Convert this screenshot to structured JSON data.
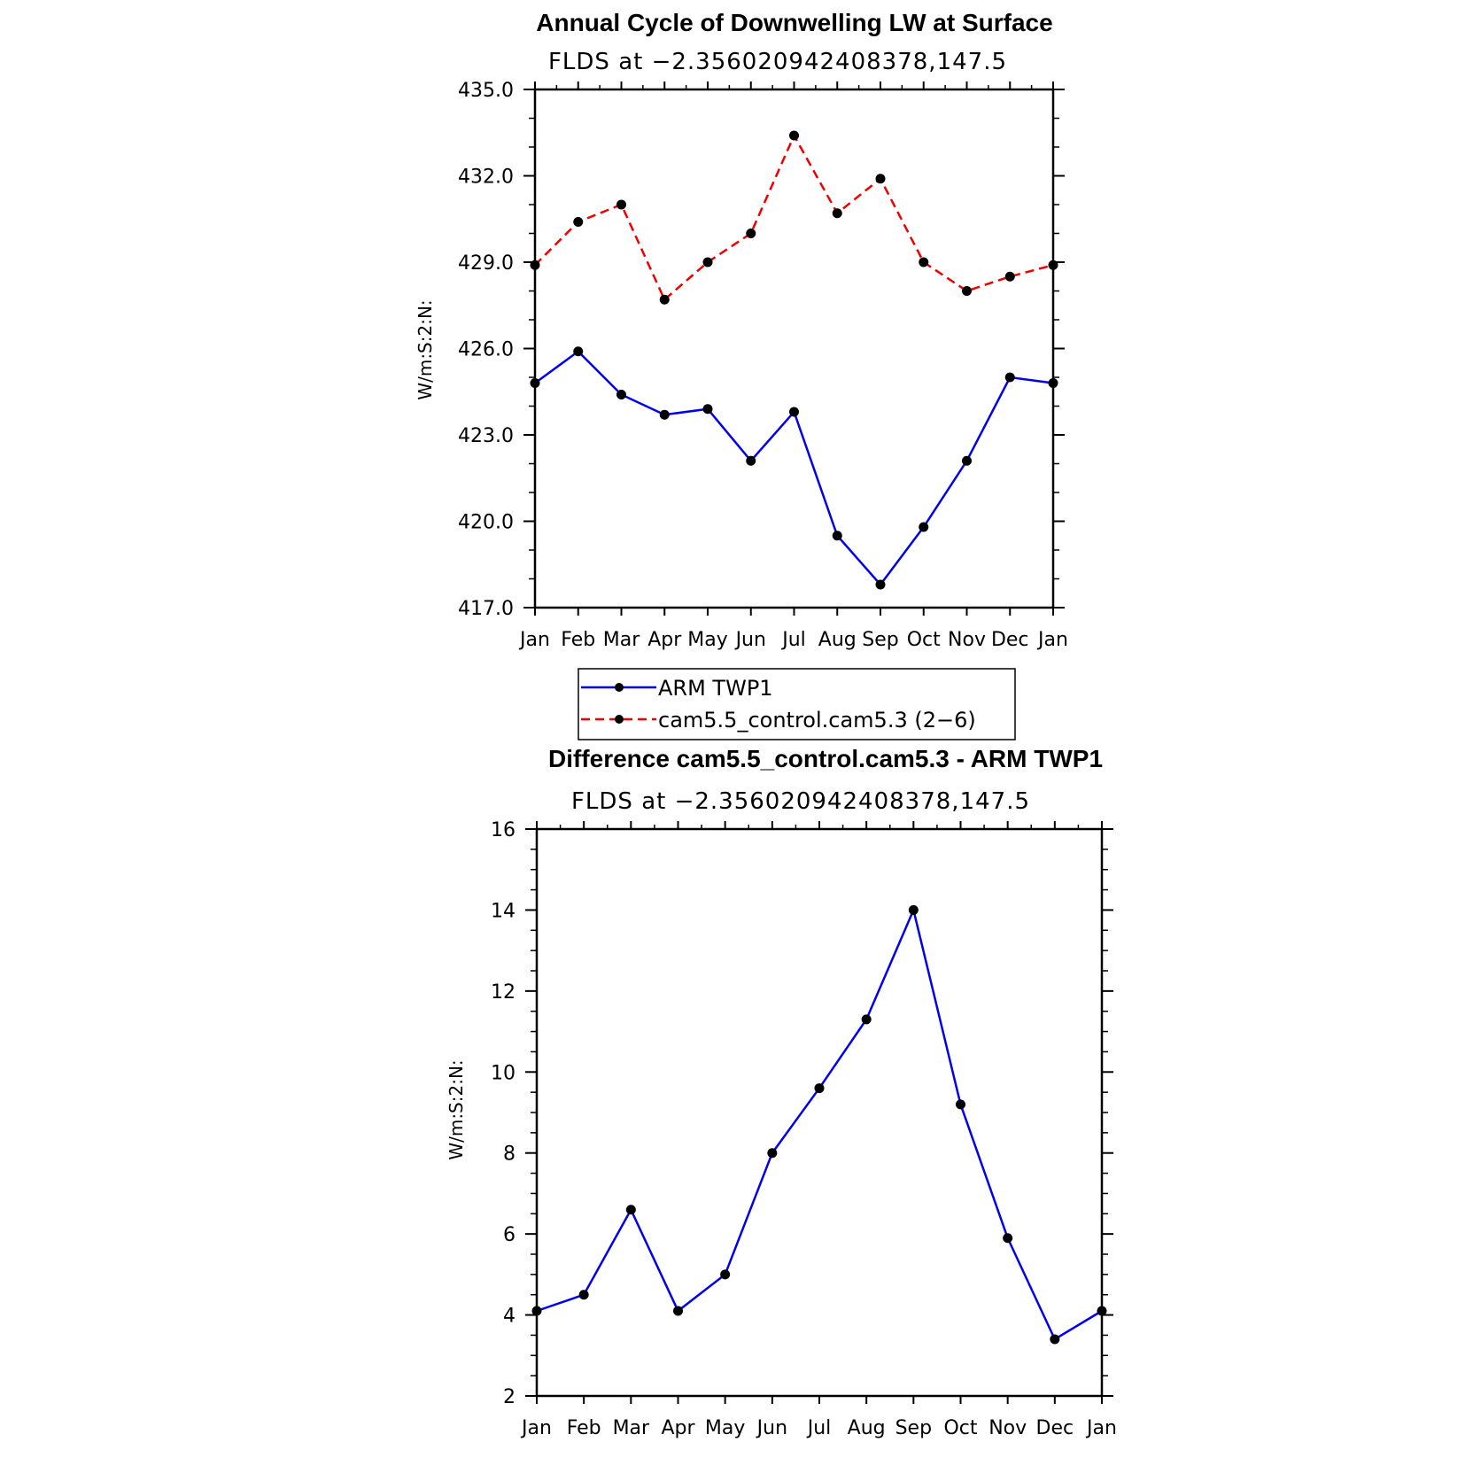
{
  "chart_data": [
    {
      "type": "line",
      "title": "Annual Cycle of Downwelling LW at Surface",
      "subtitle": "FLDS at −2.356020942408378,147.5",
      "ylabel": "W/m:S:2:N:",
      "xlabel": "",
      "categories": [
        "Jan",
        "Feb",
        "Mar",
        "Apr",
        "May",
        "Jun",
        "Jul",
        "Aug",
        "Sep",
        "Oct",
        "Nov",
        "Dec",
        "Jan"
      ],
      "yticks": [
        "417.0",
        "420.0",
        "423.0",
        "426.0",
        "429.0",
        "432.0",
        "435.0"
      ],
      "ylim": [
        417,
        435
      ],
      "series": [
        {
          "name": "ARM TWP1",
          "color": "#0000ee",
          "dash": "solid",
          "values": [
            424.8,
            425.9,
            424.4,
            423.7,
            423.9,
            422.1,
            423.8,
            419.5,
            417.8,
            419.8,
            422.1,
            425.0,
            424.8
          ]
        },
        {
          "name": "cam5.5_control.cam5.3 (2−6)",
          "color": "#ee0000",
          "dash": "dashed",
          "values": [
            428.9,
            430.4,
            431.0,
            427.7,
            429.0,
            430.0,
            433.4,
            430.7,
            431.9,
            429.0,
            428.0,
            428.5,
            428.9
          ]
        }
      ],
      "legend_position": "below"
    },
    {
      "type": "line",
      "title": "Difference cam5.5_control.cam5.3 - ARM TWP1",
      "subtitle": "FLDS at −2.356020942408378,147.5",
      "ylabel": "W/m:S:2:N:",
      "xlabel": "",
      "categories": [
        "Jan",
        "Feb",
        "Mar",
        "Apr",
        "May",
        "Jun",
        "Jul",
        "Aug",
        "Sep",
        "Oct",
        "Nov",
        "Dec",
        "Jan"
      ],
      "yticks": [
        "2",
        "4",
        "6",
        "8",
        "10",
        "12",
        "14",
        "16"
      ],
      "ylim": [
        2,
        16
      ],
      "series": [
        {
          "color": "#0000ee",
          "dash": "solid",
          "values": [
            4.1,
            4.5,
            6.6,
            4.1,
            5.0,
            8.0,
            9.6,
            11.3,
            14.0,
            9.2,
            5.9,
            3.4,
            4.1
          ]
        }
      ]
    }
  ]
}
